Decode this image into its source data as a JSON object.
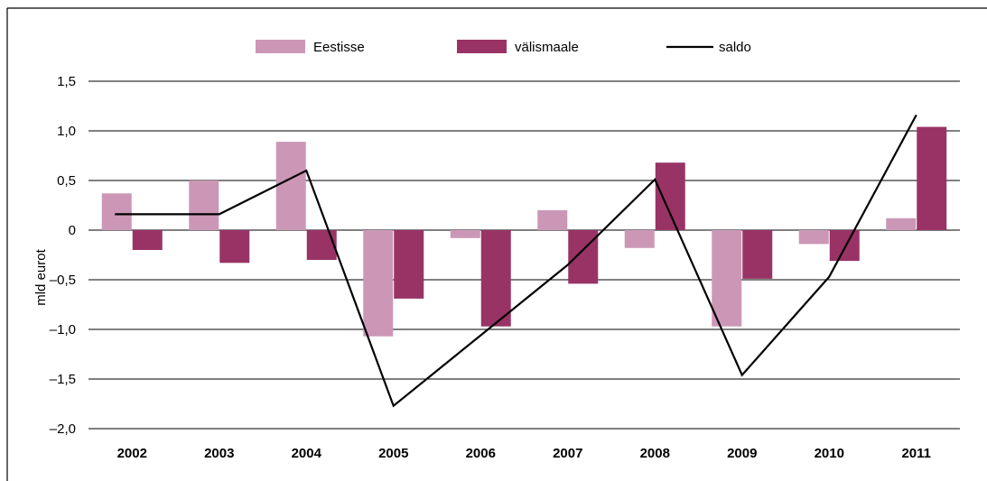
{
  "chart_data": {
    "type": "bar",
    "categories": [
      "2002",
      "2003",
      "2004",
      "2005",
      "2006",
      "2007",
      "2008",
      "2009",
      "2010",
      "2011"
    ],
    "series": [
      {
        "name": "Eestisse",
        "type": "bar",
        "color": "#cc97b6",
        "values": [
          0.37,
          0.5,
          0.89,
          -1.07,
          -0.08,
          0.2,
          -0.18,
          -0.97,
          -0.14,
          0.12
        ]
      },
      {
        "name": "välismaale",
        "type": "bar",
        "color": "#993366",
        "values": [
          -0.2,
          -0.33,
          -0.3,
          -0.69,
          -0.97,
          -0.54,
          0.68,
          -0.49,
          -0.31,
          1.04
        ]
      },
      {
        "name": "saldo",
        "type": "line",
        "color": "#000000",
        "values": [
          0.16,
          0.16,
          0.6,
          -1.77,
          -1.06,
          -0.35,
          0.51,
          -1.46,
          -0.47,
          1.16
        ]
      }
    ],
    "xlabel": "",
    "ylabel": "mld eurot",
    "ylim": [
      -2.0,
      1.5
    ],
    "yticks": [
      1.5,
      1.0,
      0.5,
      0,
      -0.5,
      -1.0,
      -1.5,
      -2.0
    ],
    "ytick_labels": [
      "1,5",
      "1,0",
      "0,5",
      "0",
      "–0,5",
      "–1,0",
      "–1,5",
      "–2,0"
    ],
    "grid": true,
    "legend_position": "top"
  }
}
